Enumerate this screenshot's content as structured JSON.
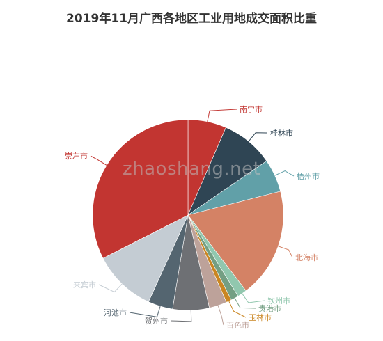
{
  "chart_data": {
    "type": "pie",
    "title": "2019年11月广西各地区工业用地成交面积比重",
    "watermark": "zhaoshang.net",
    "slices": [
      {
        "label": "南宁市",
        "value": 6.5,
        "color": "#c23531"
      },
      {
        "label": "桂林市",
        "value": 8.9,
        "color": "#2f4554"
      },
      {
        "label": "梧州市",
        "value": 5.6,
        "color": "#61a0a8"
      },
      {
        "label": "北海市",
        "value": 18.6,
        "color": "#d48265"
      },
      {
        "label": "钦州市",
        "value": 1.6,
        "color": "#91c7ae"
      },
      {
        "label": "贵港市",
        "value": 1.3,
        "color": "#749f83"
      },
      {
        "label": "玉林市",
        "value": 0.9,
        "color": "#ca8622"
      },
      {
        "label": "百色市",
        "value": 3.0,
        "color": "#bda29a"
      },
      {
        "label": "贺州市",
        "value": 6.2,
        "color": "#6e7074"
      },
      {
        "label": "河池市",
        "value": 4.2,
        "color": "#546570"
      },
      {
        "label": "来宾市",
        "value": 10.7,
        "color": "#c4ccd3"
      },
      {
        "label": "崇左市",
        "value": 32.5,
        "color": "#c23531"
      }
    ]
  }
}
